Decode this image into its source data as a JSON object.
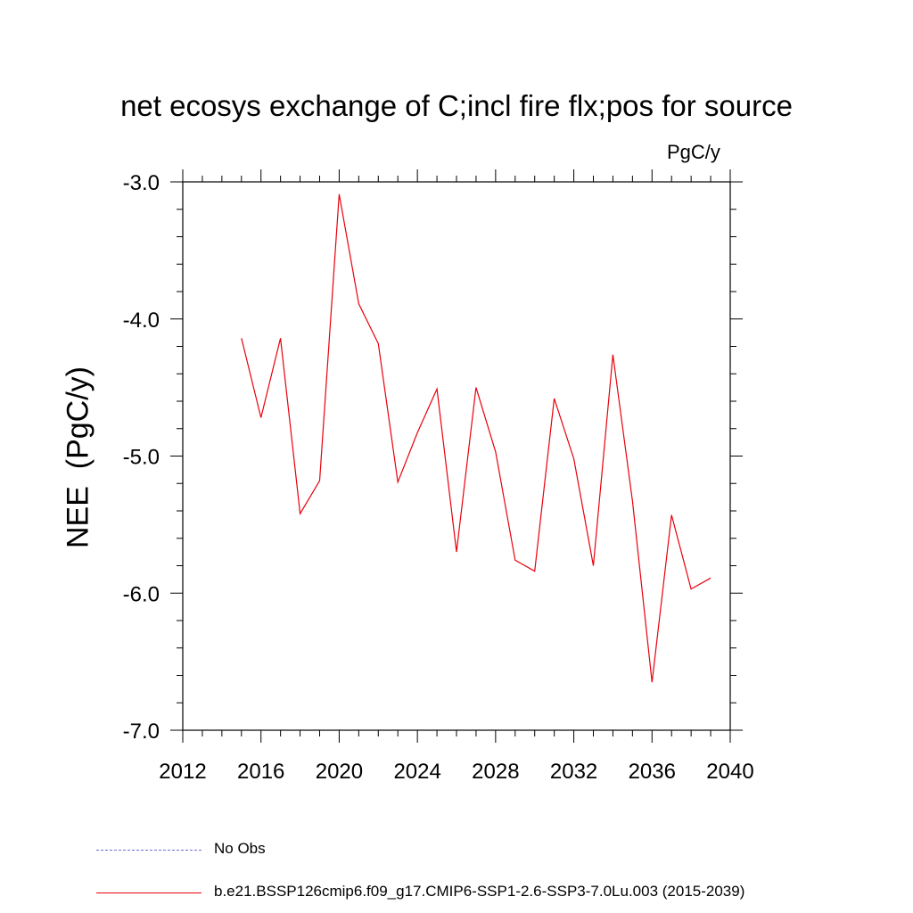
{
  "chart_data": {
    "type": "line",
    "title": "net ecosys exchange of C;incl fire flx;pos for source",
    "units_label": "PgC/y",
    "ylabel": "NEE  (PgC/y)",
    "xlabel": "",
    "xlim": [
      2012,
      2040
    ],
    "ylim": [
      -7.0,
      -3.0
    ],
    "x_ticks": [
      "2012",
      "2016",
      "2020",
      "2024",
      "2028",
      "2032",
      "2036",
      "2040"
    ],
    "y_ticks": [
      "-3.0",
      "-4.0",
      "-5.0",
      "-6.0",
      "-7.0"
    ],
    "grid": false,
    "legend_position": "bottom-left",
    "series": [
      {
        "name": "b.e21.BSSP126cmip6.f09_g17.CMIP6-SSP1-2.6-SSP3-7.0Lu.003 (2015-2039)",
        "color": "#e8000b",
        "style": "solid",
        "x": [
          2015,
          2016,
          2017,
          2018,
          2019,
          2020,
          2021,
          2022,
          2023,
          2024,
          2025,
          2026,
          2027,
          2028,
          2029,
          2030,
          2031,
          2032,
          2033,
          2034,
          2035,
          2036,
          2037,
          2038,
          2039
        ],
        "values": [
          -4.14,
          -4.72,
          -4.14,
          -5.42,
          -5.18,
          -3.09,
          -3.89,
          -4.18,
          -5.19,
          -4.83,
          -4.51,
          -5.7,
          -4.5,
          -4.97,
          -5.76,
          -5.84,
          -4.58,
          -5.02,
          -5.8,
          -4.26,
          -5.33,
          -6.65,
          -5.43,
          -5.97,
          -5.89
        ]
      },
      {
        "name": "No Obs",
        "color": "#6b6bd6",
        "style": "dashed",
        "x": [],
        "values": []
      }
    ]
  }
}
